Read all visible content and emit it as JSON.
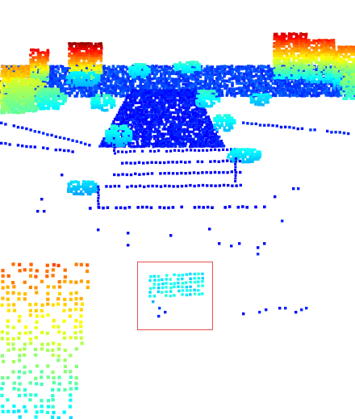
{
  "viewer": {
    "colormap": "jet",
    "background": "#ffffff",
    "highlight_color": "#e8504e",
    "highlighted_object": "detection-box"
  }
}
